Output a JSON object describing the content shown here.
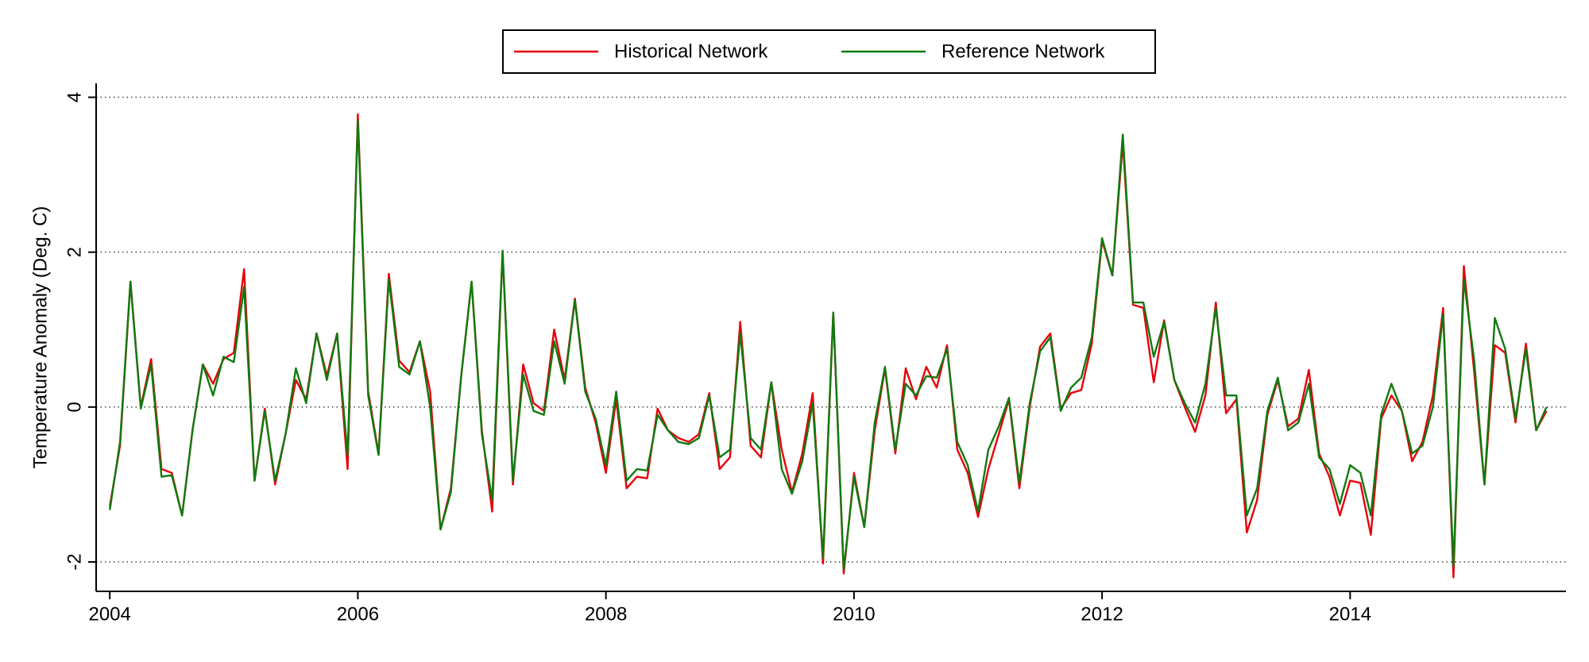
{
  "chart_data": {
    "type": "line",
    "ylabel": "Temperature Anomaly (Deg. C)",
    "x": [
      2004,
      2004.083,
      2004.167,
      2004.25,
      2004.333,
      2004.417,
      2004.5,
      2004.583,
      2004.667,
      2004.75,
      2004.833,
      2004.917,
      2005,
      2005.083,
      2005.167,
      2005.25,
      2005.333,
      2005.417,
      2005.5,
      2005.583,
      2005.667,
      2005.75,
      2005.833,
      2005.917,
      2006,
      2006.083,
      2006.167,
      2006.25,
      2006.333,
      2006.417,
      2006.5,
      2006.583,
      2006.667,
      2006.75,
      2006.833,
      2006.917,
      2007,
      2007.083,
      2007.167,
      2007.25,
      2007.333,
      2007.417,
      2007.5,
      2007.583,
      2007.667,
      2007.75,
      2007.833,
      2007.917,
      2008,
      2008.083,
      2008.167,
      2008.25,
      2008.333,
      2008.417,
      2008.5,
      2008.583,
      2008.667,
      2008.75,
      2008.833,
      2008.917,
      2009,
      2009.083,
      2009.167,
      2009.25,
      2009.333,
      2009.417,
      2009.5,
      2009.583,
      2009.667,
      2009.75,
      2009.833,
      2009.917,
      2010,
      2010.083,
      2010.167,
      2010.25,
      2010.333,
      2010.417,
      2010.5,
      2010.583,
      2010.667,
      2010.75,
      2010.833,
      2010.917,
      2011,
      2011.083,
      2011.167,
      2011.25,
      2011.333,
      2011.417,
      2011.5,
      2011.583,
      2011.667,
      2011.75,
      2011.833,
      2011.917,
      2012,
      2012.083,
      2012.167,
      2012.25,
      2012.333,
      2012.417,
      2012.5,
      2012.583,
      2012.667,
      2012.75,
      2012.833,
      2012.917,
      2013,
      2013.083,
      2013.167,
      2013.25,
      2013.333,
      2013.417,
      2013.5,
      2013.583,
      2013.667,
      2013.75,
      2013.833,
      2013.917,
      2014,
      2014.083,
      2014.167,
      2014.25,
      2014.333,
      2014.417,
      2014.5,
      2014.583,
      2014.667,
      2014.75,
      2014.833,
      2014.917,
      2015,
      2015.083,
      2015.167,
      2015.25,
      2015.333,
      2015.417,
      2015.5,
      2015.583
    ],
    "series": [
      {
        "name": "Historical Network",
        "color": "#e8000b",
        "values": [
          -1.28,
          -0.5,
          1.62,
          0.0,
          0.62,
          -0.8,
          -0.85,
          -1.4,
          -0.3,
          0.55,
          0.3,
          0.62,
          0.7,
          1.78,
          -0.95,
          -0.02,
          -1.0,
          -0.35,
          0.35,
          0.1,
          0.95,
          0.4,
          0.95,
          -0.8,
          3.78,
          0.2,
          -0.6,
          1.72,
          0.6,
          0.45,
          0.85,
          0.2,
          -1.58,
          -1.05,
          0.4,
          1.62,
          -0.3,
          -1.35,
          2.0,
          -1.0,
          0.55,
          0.05,
          -0.05,
          1.0,
          0.35,
          1.4,
          0.25,
          -0.2,
          -0.85,
          0.1,
          -1.05,
          -0.9,
          -0.92,
          -0.02,
          -0.3,
          -0.4,
          -0.45,
          -0.35,
          0.18,
          -0.8,
          -0.65,
          1.1,
          -0.5,
          -0.65,
          0.32,
          -0.55,
          -1.1,
          -0.6,
          0.18,
          -2.02,
          1.22,
          -2.15,
          -0.85,
          -1.55,
          -0.3,
          0.5,
          -0.6,
          0.5,
          0.1,
          0.52,
          0.25,
          0.8,
          -0.55,
          -0.85,
          -1.42,
          -0.8,
          -0.35,
          0.1,
          -1.05,
          0.0,
          0.78,
          0.95,
          -0.02,
          0.18,
          0.22,
          0.82,
          2.15,
          1.7,
          3.42,
          1.32,
          1.28,
          0.32,
          1.12,
          0.35,
          0.0,
          -0.32,
          0.15,
          1.35,
          -0.08,
          0.1,
          -1.62,
          -1.2,
          -0.1,
          0.35,
          -0.25,
          -0.15,
          0.48,
          -0.6,
          -0.9,
          -1.4,
          -0.95,
          -0.98,
          -1.65,
          -0.15,
          0.15,
          -0.05,
          -0.7,
          -0.45,
          0.15,
          1.28,
          -2.2,
          1.82,
          0.45,
          -1.0,
          0.8,
          0.7,
          -0.2,
          0.82,
          -0.3,
          -0.05
        ]
      },
      {
        "name": "Reference Network",
        "color": "#117a0f",
        "values": [
          -1.33,
          -0.45,
          1.62,
          -0.02,
          0.55,
          -0.9,
          -0.88,
          -1.4,
          -0.3,
          0.55,
          0.15,
          0.65,
          0.58,
          1.55,
          -0.95,
          -0.05,
          -0.95,
          -0.35,
          0.5,
          0.05,
          0.95,
          0.35,
          0.95,
          -0.62,
          3.7,
          0.15,
          -0.62,
          1.65,
          0.52,
          0.42,
          0.85,
          0.0,
          -1.58,
          -1.1,
          0.4,
          1.62,
          -0.35,
          -1.2,
          2.02,
          -0.95,
          0.42,
          -0.05,
          -0.1,
          0.85,
          0.3,
          1.38,
          0.2,
          -0.15,
          -0.75,
          0.2,
          -0.95,
          -0.8,
          -0.82,
          -0.1,
          -0.3,
          -0.45,
          -0.48,
          -0.4,
          0.15,
          -0.65,
          -0.55,
          0.95,
          -0.4,
          -0.55,
          0.32,
          -0.8,
          -1.12,
          -0.7,
          0.05,
          -1.95,
          1.22,
          -2.1,
          -0.9,
          -1.55,
          -0.2,
          0.52,
          -0.55,
          0.3,
          0.15,
          0.4,
          0.38,
          0.75,
          -0.45,
          -0.75,
          -1.35,
          -0.55,
          -0.25,
          0.12,
          -0.98,
          0.05,
          0.72,
          0.9,
          -0.05,
          0.25,
          0.38,
          0.9,
          2.18,
          1.7,
          3.52,
          1.35,
          1.35,
          0.65,
          1.1,
          0.35,
          0.05,
          -0.2,
          0.3,
          1.28,
          0.15,
          0.15,
          -1.4,
          -1.05,
          -0.05,
          0.38,
          -0.3,
          -0.2,
          0.3,
          -0.65,
          -0.8,
          -1.25,
          -0.75,
          -0.85,
          -1.4,
          -0.1,
          0.3,
          -0.05,
          -0.6,
          -0.5,
          0.0,
          1.2,
          -2.05,
          1.65,
          0.6,
          -1.0,
          1.15,
          0.75,
          -0.15,
          0.75,
          -0.3,
          0.0
        ]
      }
    ],
    "xlim": [
      2003.89,
      2015.74
    ],
    "ylim": [
      -2.38,
      4.18
    ],
    "xticks": [
      2004,
      2006,
      2008,
      2010,
      2012,
      2014
    ],
    "yticks": [
      -2,
      0,
      2,
      4
    ],
    "grid": true,
    "legend": "top"
  }
}
